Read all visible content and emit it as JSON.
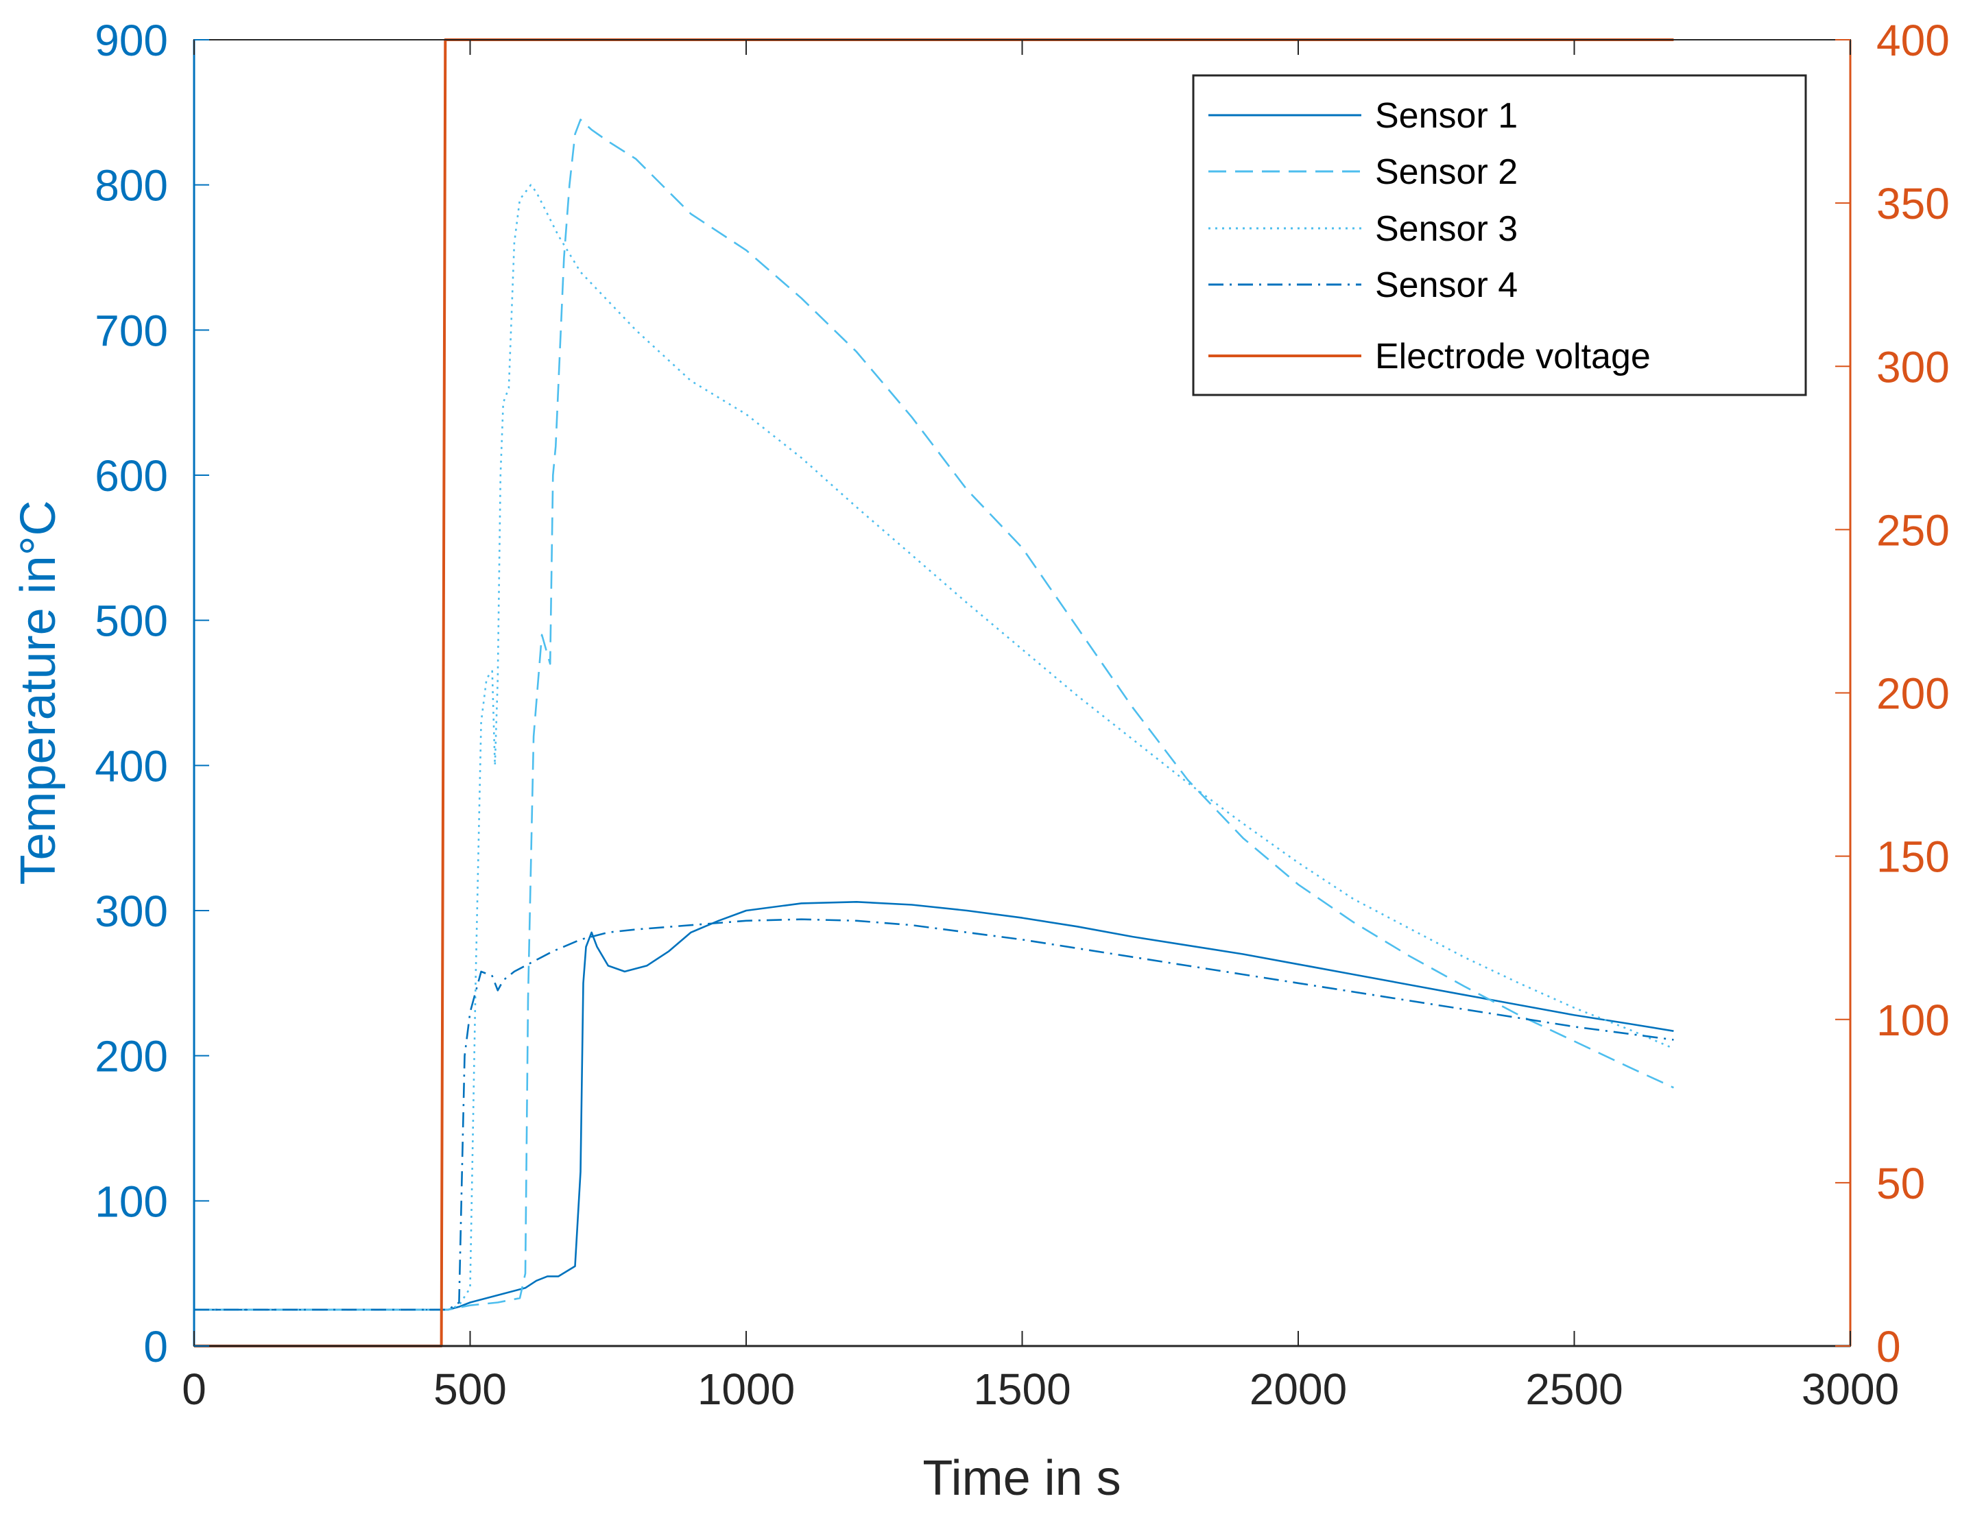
{
  "chart_data": {
    "type": "line",
    "xlabel": "Time in s",
    "ylabel_left": "Temperature in°C",
    "xlim": [
      0,
      3000
    ],
    "ylim_left": [
      0,
      900
    ],
    "ylim_right": [
      0,
      400
    ],
    "x_ticks": [
      "0",
      "500",
      "1000",
      "1500",
      "2000",
      "2500",
      "3000"
    ],
    "y_ticks_left": [
      "0",
      "100",
      "200",
      "300",
      "400",
      "500",
      "600",
      "700",
      "800",
      "900"
    ],
    "y_ticks_right": [
      "0",
      "50",
      "100",
      "150",
      "200",
      "250",
      "300",
      "350",
      "400"
    ],
    "grid": false,
    "legend_position": "top-right",
    "colors": {
      "temperature": "#0072BD",
      "voltage": "#D95319"
    },
    "series": [
      {
        "name": "Sensor 1",
        "axis": "left",
        "style": "solid",
        "color": "#0072BD",
        "x": [
          0,
          460,
          480,
          500,
          550,
          600,
          620,
          640,
          660,
          690,
          700,
          705,
          710,
          720,
          730,
          750,
          780,
          820,
          860,
          900,
          950,
          1000,
          1100,
          1200,
          1300,
          1400,
          1500,
          1600,
          1700,
          1800,
          1900,
          2000,
          2100,
          2200,
          2300,
          2400,
          2500,
          2600,
          2680
        ],
        "y": [
          25,
          25,
          27,
          30,
          35,
          40,
          45,
          48,
          48,
          55,
          120,
          250,
          275,
          285,
          275,
          262,
          258,
          262,
          272,
          285,
          293,
          300,
          305,
          306,
          304,
          300,
          295,
          289,
          282,
          276,
          270,
          263,
          256,
          249,
          242,
          235,
          228,
          222,
          217
        ]
      },
      {
        "name": "Sensor 2",
        "axis": "left",
        "style": "dashed",
        "color": "#4DBEEE",
        "x": [
          0,
          460,
          500,
          550,
          590,
          600,
          605,
          615,
          630,
          645,
          650,
          655,
          670,
          680,
          690,
          700,
          720,
          750,
          800,
          900,
          1000,
          1100,
          1200,
          1300,
          1400,
          1450,
          1500,
          1600,
          1700,
          1800,
          1900,
          2000,
          2100,
          2200,
          2300,
          2400,
          2500,
          2600,
          2680
        ],
        "y": [
          25,
          25,
          28,
          30,
          33,
          50,
          240,
          420,
          490,
          470,
          600,
          620,
          750,
          800,
          835,
          845,
          838,
          830,
          818,
          780,
          755,
          722,
          685,
          640,
          590,
          570,
          550,
          495,
          440,
          390,
          350,
          318,
          292,
          269,
          248,
          228,
          210,
          192,
          178
        ]
      },
      {
        "name": "Sensor 3",
        "axis": "left",
        "style": "dotted",
        "color": "#4DBEEE",
        "x": [
          0,
          460,
          480,
          500,
          510,
          520,
          530,
          540,
          545,
          550,
          555,
          560,
          570,
          580,
          590,
          600,
          610,
          620,
          640,
          660,
          700,
          800,
          900,
          1000,
          1100,
          1200,
          1300,
          1400,
          1500,
          1600,
          1700,
          1800,
          1900,
          2000,
          2100,
          2200,
          2300,
          2400,
          2500,
          2600,
          2680
        ],
        "y": [
          25,
          25,
          28,
          40,
          250,
          430,
          460,
          465,
          400,
          460,
          600,
          650,
          660,
          760,
          790,
          795,
          800,
          795,
          780,
          765,
          740,
          700,
          665,
          642,
          612,
          578,
          545,
          512,
          480,
          448,
          418,
          388,
          360,
          333,
          308,
          288,
          268,
          250,
          233,
          218,
          205
        ]
      },
      {
        "name": "Sensor 4",
        "axis": "left",
        "style": "dashdot",
        "color": "#0072BD",
        "x": [
          0,
          460,
          480,
          490,
          500,
          520,
          540,
          550,
          560,
          580,
          600,
          620,
          650,
          700,
          750,
          800,
          900,
          1000,
          1100,
          1200,
          1300,
          1400,
          1500,
          1600,
          1700,
          1800,
          1900,
          2000,
          2100,
          2200,
          2300,
          2400,
          2500,
          2600,
          2680
        ],
        "y": [
          25,
          25,
          30,
          200,
          230,
          258,
          255,
          245,
          252,
          258,
          262,
          266,
          272,
          280,
          285,
          287,
          290,
          293,
          294,
          293,
          290,
          285,
          280,
          274,
          268,
          262,
          256,
          250,
          244,
          238,
          232,
          226,
          220,
          215,
          211
        ]
      },
      {
        "name": "Electrode voltage",
        "axis": "right",
        "style": "solid",
        "color": "#D95319",
        "x": [
          0,
          448,
          455,
          2680
        ],
        "y": [
          0,
          0,
          400,
          400
        ]
      }
    ]
  }
}
